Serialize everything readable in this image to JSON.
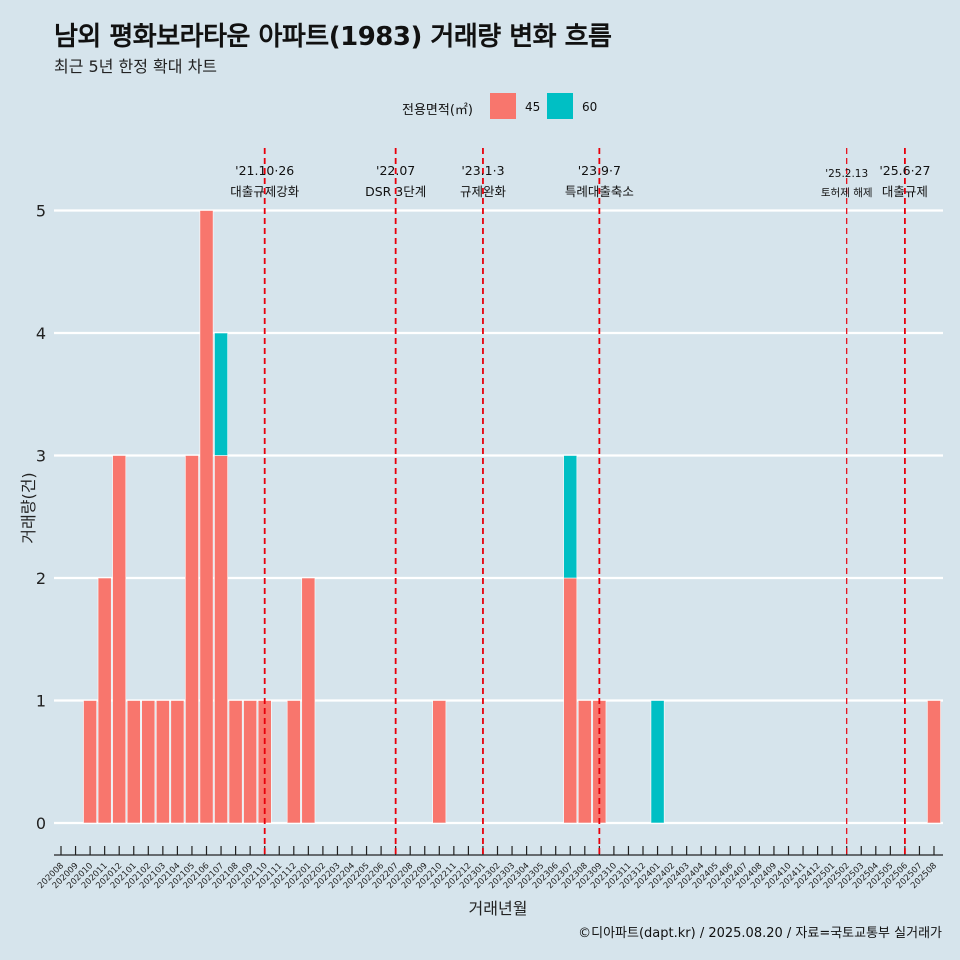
{
  "title": "남외 평화보라타운 아파트(1983) 거래량 변화 흐름",
  "subtitle": "최근 5년 한정 확대 차트",
  "caption": "©디아파트(dapt.kr) / 2025.08.20 / 자료=국토교통부 실거래가",
  "legend": {
    "title": "전용면적(㎡)",
    "items": [
      {
        "label": "45",
        "color": "#f8766d"
      },
      {
        "label": "60",
        "color": "#00bfc4"
      }
    ]
  },
  "chart_data": {
    "type": "bar",
    "title": "남외 평화보라타운 아파트(1983) 거래량 변화 흐름",
    "xlabel": "거래년월",
    "ylabel": "거래량(건)",
    "ylim": [
      0,
      5
    ],
    "yticks": [
      0,
      1,
      2,
      3,
      4,
      5
    ],
    "grid": true,
    "legend_position": "top",
    "categories": [
      "202008",
      "202009",
      "202010",
      "202011",
      "202012",
      "202101",
      "202102",
      "202103",
      "202104",
      "202105",
      "202106",
      "202107",
      "202108",
      "202109",
      "202110",
      "202111",
      "202112",
      "202201",
      "202202",
      "202203",
      "202204",
      "202205",
      "202206",
      "202207",
      "202208",
      "202209",
      "202210",
      "202211",
      "202212",
      "202301",
      "202302",
      "202303",
      "202304",
      "202305",
      "202306",
      "202307",
      "202308",
      "202309",
      "202310",
      "202311",
      "202312",
      "202401",
      "202402",
      "202403",
      "202404",
      "202405",
      "202406",
      "202407",
      "202408",
      "202409",
      "202410",
      "202411",
      "202412",
      "202501",
      "202502",
      "202503",
      "202504",
      "202505",
      "202506",
      "202507",
      "202508"
    ],
    "series": [
      {
        "name": "45",
        "color": "#f8766d",
        "values": [
          0,
          0,
          1,
          2,
          3,
          1,
          1,
          1,
          1,
          3,
          5,
          3,
          1,
          1,
          1,
          0,
          1,
          2,
          0,
          0,
          0,
          0,
          0,
          0,
          0,
          0,
          1,
          0,
          0,
          0,
          0,
          0,
          0,
          0,
          0,
          2,
          1,
          1,
          0,
          0,
          0,
          0,
          0,
          0,
          0,
          0,
          0,
          0,
          0,
          0,
          0,
          0,
          0,
          0,
          0,
          0,
          0,
          0,
          0,
          0,
          1
        ]
      },
      {
        "name": "60",
        "color": "#00bfc4",
        "values": [
          0,
          0,
          0,
          0,
          0,
          0,
          0,
          0,
          0,
          0,
          0,
          1,
          0,
          0,
          0,
          0,
          0,
          0,
          0,
          0,
          0,
          0,
          0,
          0,
          0,
          0,
          0,
          0,
          0,
          0,
          0,
          0,
          0,
          0,
          0,
          1,
          0,
          0,
          0,
          0,
          0,
          1,
          0,
          0,
          0,
          0,
          0,
          0,
          0,
          0,
          0,
          0,
          0,
          0,
          0,
          0,
          0,
          0,
          0,
          0,
          0
        ]
      }
    ],
    "annotations": [
      {
        "x": "202110",
        "label_top": "'21.10·26",
        "label_bottom": "대출규제강화",
        "small": false
      },
      {
        "x": "202207",
        "label_top": "'22.07",
        "label_bottom": "DSR 3단계",
        "small": false
      },
      {
        "x": "202301",
        "label_top": "'23.1·3",
        "label_bottom": "규제완화",
        "small": false
      },
      {
        "x": "202309",
        "label_top": "'23.9·7",
        "label_bottom": "특례대출축소",
        "small": false
      },
      {
        "x": "202502",
        "label_top": "'25.2.13",
        "label_bottom": "토허제 해제",
        "small": true
      },
      {
        "x": "202506",
        "label_top": "'25.6·27",
        "label_bottom": "대출규제",
        "small": false
      }
    ],
    "annotation_color": "#e8000b"
  }
}
